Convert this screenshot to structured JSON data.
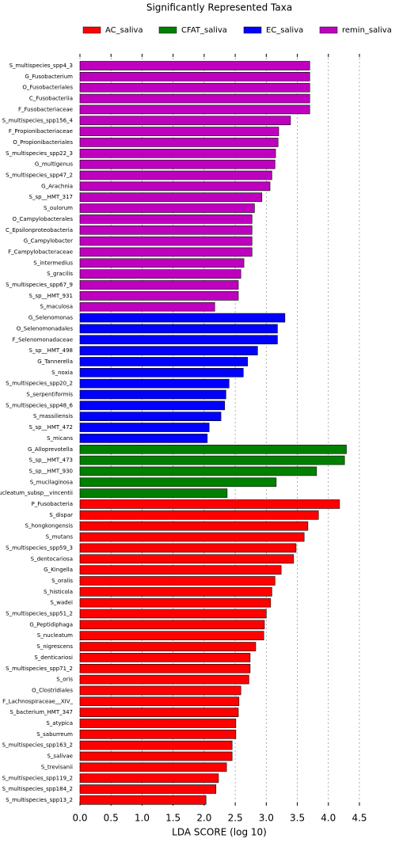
{
  "chart_data": {
    "type": "bar",
    "orientation": "horizontal",
    "title": "Significantly Represented Taxa",
    "xlabel": "LDA SCORE (log 10)",
    "xlim": [
      0,
      4.5
    ],
    "xticks": [
      {
        "value": 0,
        "label": "0.0"
      },
      0.5,
      {
        "value": 1,
        "label": "1.0"
      },
      1.5,
      {
        "value": 2,
        "label": "2.0"
      },
      2.5,
      {
        "value": 3,
        "label": "3.0"
      },
      3.5,
      {
        "value": 4,
        "label": "4.0"
      },
      4.5
    ],
    "grid": true,
    "series": [
      {
        "name": "AC_saliva",
        "color": "#ff0000",
        "categories": [
          "P_Fusobacteria",
          "S_dispar",
          "S_hongkongensis",
          "S_mutans",
          "S_multispecies_spp59_3",
          "S_dentocariosa",
          "G_Kingella",
          "S_oralis",
          "S_histicola",
          "S_wadei",
          "S_multispecies_spp51_2",
          "G_Peptidiphaga",
          "S_nucleatum",
          "S_nigrescens",
          "S_denticariosi",
          "S_multispecies_spp71_2",
          "S_oris",
          "O_Clostridiales",
          "F_Lachnospiraceae__XIV_",
          "S_bacterium_HMT_347",
          "S_atypica",
          "S_saburreum",
          "S_multispecies_spp163_2",
          "S_salivae",
          "S_trevisanii",
          "S_multispecies_spp119_2",
          "S_multispecies_spp184_2",
          "S_multispecies_spp13_2"
        ],
        "values": [
          4.18,
          3.84,
          3.67,
          3.61,
          3.48,
          3.44,
          3.24,
          3.14,
          3.09,
          3.07,
          3.0,
          2.97,
          2.96,
          2.83,
          2.74,
          2.74,
          2.72,
          2.59,
          2.56,
          2.55,
          2.51,
          2.51,
          2.45,
          2.45,
          2.36,
          2.23,
          2.19,
          2.03
        ]
      },
      {
        "name": "CFAT_saliva",
        "color": "#008000",
        "categories": [
          "G_Alloprevotella",
          "S_sp__HMT_473",
          "S_sp__HMT_930",
          "S_mucilaginosa",
          "S_nucleatum_subsp__vincentii"
        ],
        "values": [
          4.29,
          4.26,
          3.81,
          3.16,
          2.37
        ]
      },
      {
        "name": "EC_saliva",
        "color": "#0000ff",
        "categories": [
          "G_Selenomonas",
          "O_Selenomonadales",
          "F_Selenomonadaceae",
          "S_sp__HMT_498",
          "G_Tannerella",
          "S_noxia",
          "S_multispecies_spp20_2",
          "S_serpentiformis",
          "S_multispecies_spp48_6",
          "S_massiliensis",
          "S_sp__HMT_472",
          "S_micans"
        ],
        "values": [
          3.3,
          3.18,
          3.18,
          2.86,
          2.7,
          2.63,
          2.4,
          2.35,
          2.33,
          2.27,
          2.08,
          2.05
        ]
      },
      {
        "name": "remin_saliva",
        "color": "#bf00bf",
        "categories": [
          "S_multispecies_spp4_3",
          "G_Fusobacterium",
          "O_Fusobacteriales",
          "C_Fusobacteriia",
          "F_Fusobacteriaceae",
          "S_multispecies_spp156_4",
          "F_Propionibacteriaceae",
          "O_Propionibacteriales",
          "S_multispecies_spp22_3",
          "G_multigenus",
          "S_multispecies_spp47_2",
          "G_Arachnia",
          "S_sp__HMT_317",
          "S_oulorum",
          "O_Campylobacterales",
          "C_Epsilonproteobacteria",
          "G_Campylobacter",
          "F_Campylobacteraceae",
          "S_intermedius",
          "S_gracilis",
          "S_multispecies_spp67_9",
          "S_sp__HMT_931",
          "S_maculosa"
        ],
        "values": [
          3.7,
          3.7,
          3.7,
          3.7,
          3.7,
          3.39,
          3.2,
          3.19,
          3.15,
          3.14,
          3.09,
          3.06,
          2.93,
          2.81,
          2.77,
          2.77,
          2.77,
          2.77,
          2.64,
          2.59,
          2.55,
          2.55,
          2.17
        ]
      }
    ]
  }
}
